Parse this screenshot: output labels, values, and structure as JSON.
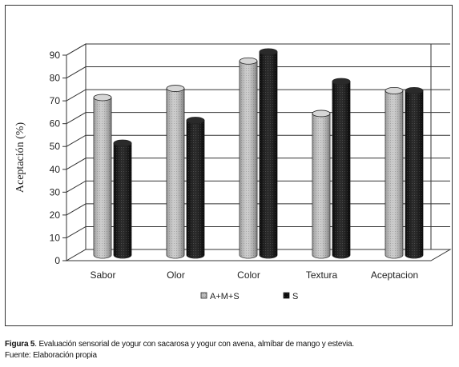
{
  "chart_data": {
    "type": "bar",
    "categories": [
      "Sabor",
      "Olor",
      "Color",
      "Textura",
      "Aceptacion"
    ],
    "series": [
      {
        "name": "A+M+S",
        "values": [
          69,
          73,
          85,
          62,
          72
        ],
        "color": "#b9b9b9",
        "pattern": "dotted-gray"
      },
      {
        "name": "S",
        "values": [
          49,
          59,
          89,
          76,
          72
        ],
        "color": "#111111",
        "pattern": "dotted-black"
      }
    ],
    "ylabel": "Aceptación (%)",
    "xlabel": "",
    "ylim": [
      0,
      90
    ],
    "yticks": [
      "0",
      "10",
      "20",
      "30",
      "40",
      "50",
      "60",
      "70",
      "80",
      "90"
    ],
    "grid": true,
    "three_d": true,
    "legend": "bottom"
  },
  "caption": {
    "figure_label": "Figura 5",
    "text": ". Evaluación sensorial de yogur con sacarosa y yogur con avena, almíbar de mango y estevia.",
    "source": "Fuente: Elaboración propia"
  }
}
